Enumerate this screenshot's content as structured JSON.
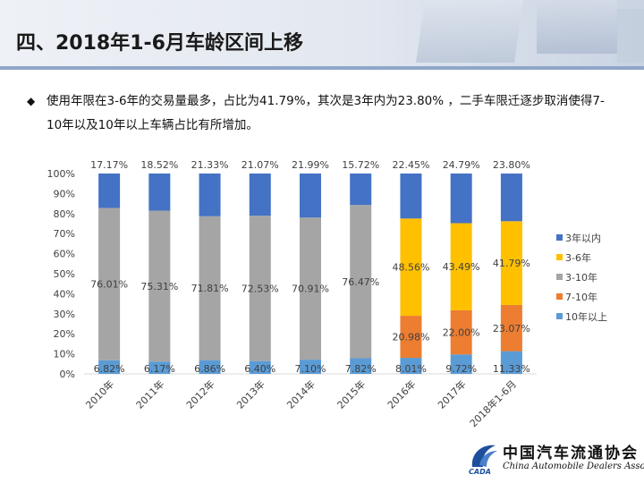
{
  "title": "四、2018年1-6月车龄区间上移",
  "bullet": {
    "mark": "◆",
    "text": "使用年限在3-6年的交易量最多，占比为41.79%，其次是3年内为23.80% ，二手车限迁逐步取消使得7-10年以及10年以上车辆占比有所增加。"
  },
  "chart_data": {
    "type": "bar",
    "stacked": true,
    "percent": true,
    "categories": [
      "2010年",
      "2011年",
      "2012年",
      "2013年",
      "2014年",
      "2015年",
      "2016年",
      "2017年",
      "2018年1-6月"
    ],
    "yticks": [
      "0%",
      "10%",
      "20%",
      "30%",
      "40%",
      "50%",
      "60%",
      "70%",
      "80%",
      "90%",
      "100%"
    ],
    "ylim": [
      0,
      100
    ],
    "legend_position": "right",
    "series": [
      {
        "name": "10年以上",
        "color": "#5b9bd5",
        "values": [
          6.82,
          6.17,
          6.86,
          6.4,
          7.1,
          7.82,
          8.01,
          9.72,
          11.33
        ],
        "labels": [
          "6.82%",
          "6.17%",
          "6.86%",
          "6.40%",
          "7.10%",
          "7.82%",
          "8.01%",
          "9.72%",
          "11.33%"
        ]
      },
      {
        "name": "3-10年",
        "color": "#a5a5a5",
        "values": [
          76.01,
          75.31,
          71.81,
          72.53,
          70.91,
          76.47,
          null,
          null,
          null
        ],
        "labels": [
          "76.01%",
          "75.31%",
          "71.81%",
          "72.53%",
          "70.91%",
          "76.47%",
          null,
          null,
          null
        ]
      },
      {
        "name": "7-10年",
        "color": "#ed7d31",
        "values": [
          null,
          null,
          null,
          null,
          null,
          null,
          20.98,
          22.0,
          23.07
        ],
        "labels": [
          null,
          null,
          null,
          null,
          null,
          null,
          "20.98%",
          "22.00%",
          "23.07%"
        ]
      },
      {
        "name": "3-6年",
        "color": "#ffc000",
        "values": [
          null,
          null,
          null,
          null,
          null,
          null,
          48.56,
          43.49,
          41.79
        ],
        "labels": [
          null,
          null,
          null,
          null,
          null,
          null,
          "48.56%",
          "43.49%",
          "41.79%"
        ]
      },
      {
        "name": "3年以内",
        "color": "#4472c4",
        "values": [
          17.17,
          18.52,
          21.33,
          21.07,
          21.99,
          15.72,
          22.45,
          24.79,
          23.8
        ],
        "labels": [
          "17.17%",
          "18.52%",
          "21.33%",
          "21.07%",
          "21.99%",
          "15.72%",
          "22.45%",
          "24.79%",
          "23.80%"
        ]
      }
    ],
    "legend_order": [
      "3年以内",
      "3-6年",
      "3-10年",
      "7-10年",
      "10年以上"
    ]
  },
  "logo": {
    "name_cn": "中国汽车流通协会",
    "name_en": "China Automobile Dealers Association",
    "emblem_text": "CADA"
  }
}
